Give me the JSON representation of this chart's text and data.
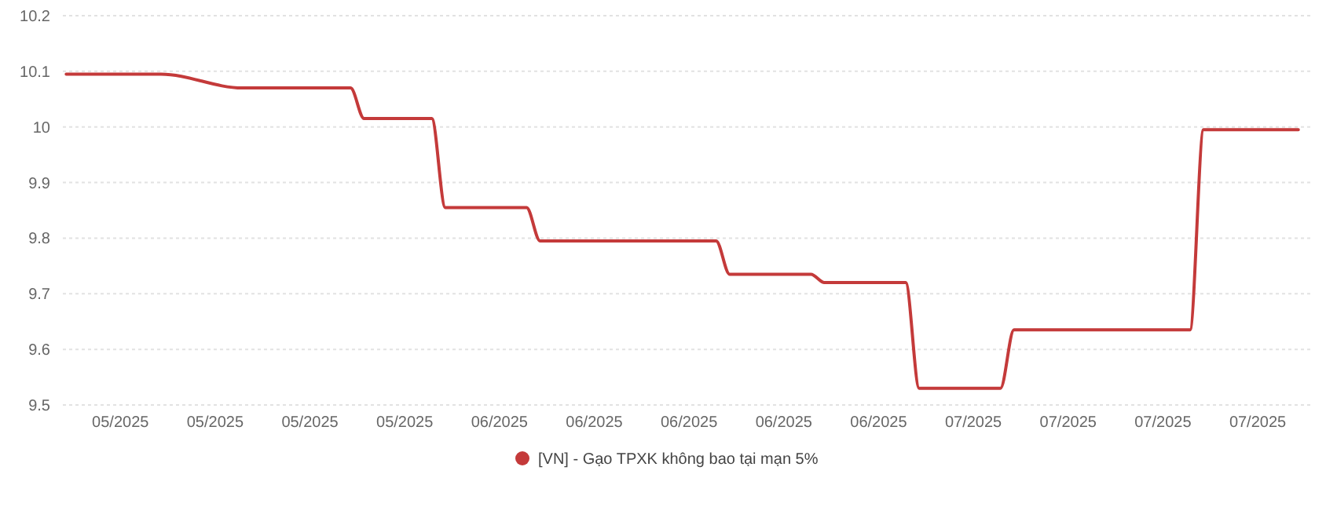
{
  "chart_data": {
    "type": "line",
    "x": [
      "2025-05-01",
      "2025-05-08",
      "2025-05-14",
      "2025-05-22",
      "2025-05-23",
      "2025-05-28",
      "2025-05-29",
      "2025-06-04",
      "2025-06-05",
      "2025-06-18",
      "2025-06-19",
      "2025-06-25",
      "2025-06-26",
      "2025-07-02",
      "2025-07-03",
      "2025-07-09",
      "2025-07-10",
      "2025-07-23",
      "2025-07-24",
      "2025-07-31"
    ],
    "series": [
      {
        "name": "[VN] - Gạo TPXK không bao tại mạn 5%",
        "color": "#c43a3a",
        "values": [
          10.095,
          10.095,
          10.07,
          10.07,
          10.015,
          10.015,
          9.855,
          9.855,
          9.795,
          9.795,
          9.735,
          9.735,
          9.72,
          9.72,
          9.53,
          9.53,
          9.635,
          9.635,
          9.995,
          9.995
        ]
      }
    ],
    "xlim": [
      "2025-04-30T18:00",
      "2025-08-01"
    ],
    "xticks": [
      {
        "value": "2025-05-05",
        "label": "05/2025"
      },
      {
        "value": "2025-05-12",
        "label": "05/2025"
      },
      {
        "value": "2025-05-19",
        "label": "05/2025"
      },
      {
        "value": "2025-05-26",
        "label": "05/2025"
      },
      {
        "value": "2025-06-02",
        "label": "06/2025"
      },
      {
        "value": "2025-06-09",
        "label": "06/2025"
      },
      {
        "value": "2025-06-16",
        "label": "06/2025"
      },
      {
        "value": "2025-06-23",
        "label": "06/2025"
      },
      {
        "value": "2025-06-30",
        "label": "06/2025"
      },
      {
        "value": "2025-07-07",
        "label": "07/2025"
      },
      {
        "value": "2025-07-14",
        "label": "07/2025"
      },
      {
        "value": "2025-07-21",
        "label": "07/2025"
      },
      {
        "value": "2025-07-28",
        "label": "07/2025"
      }
    ],
    "ylim": [
      9.5,
      10.2
    ],
    "yticks": [
      9.5,
      9.6,
      9.7,
      9.8,
      9.9,
      10,
      10.1,
      10.2
    ],
    "grid": "y",
    "legend": "bottom",
    "marker": "none",
    "line_style": "solid"
  }
}
